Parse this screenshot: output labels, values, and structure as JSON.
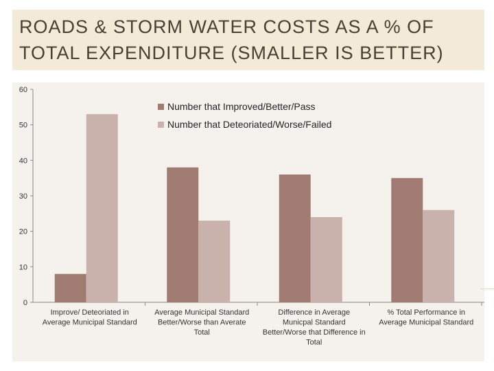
{
  "title": "ROADS & STORM WATER COSTS AS A % OF TOTAL EXPENDITURE (SMALLER IS BETTER)",
  "chart_data": {
    "type": "bar",
    "categories": [
      [
        "Improve/ Deteoriated in",
        "Average Municipal Standard"
      ],
      [
        "Average Municipal Standard",
        "Better/Worse than Averate",
        "Total"
      ],
      [
        "Difference in Average",
        "Municpal Standard",
        "Better/Worse that Difference in",
        "Total"
      ],
      [
        "% Total Performance in",
        "Average Municipal Standard"
      ]
    ],
    "series": [
      {
        "name": "Number that Improved/Better/Pass",
        "values": [
          8,
          38,
          36,
          35
        ],
        "color": "#a07b72"
      },
      {
        "name": "Number that Deteoriated/Worse/Failed",
        "values": [
          53,
          23,
          24,
          26
        ],
        "color": "#c9b1ac"
      }
    ],
    "yticks": [
      "0",
      "10",
      "20",
      "30",
      "40",
      "50",
      "60"
    ],
    "ylim": [
      0,
      60
    ],
    "grid": false,
    "legend_position": "top-right",
    "xlabel": "",
    "ylabel": ""
  }
}
